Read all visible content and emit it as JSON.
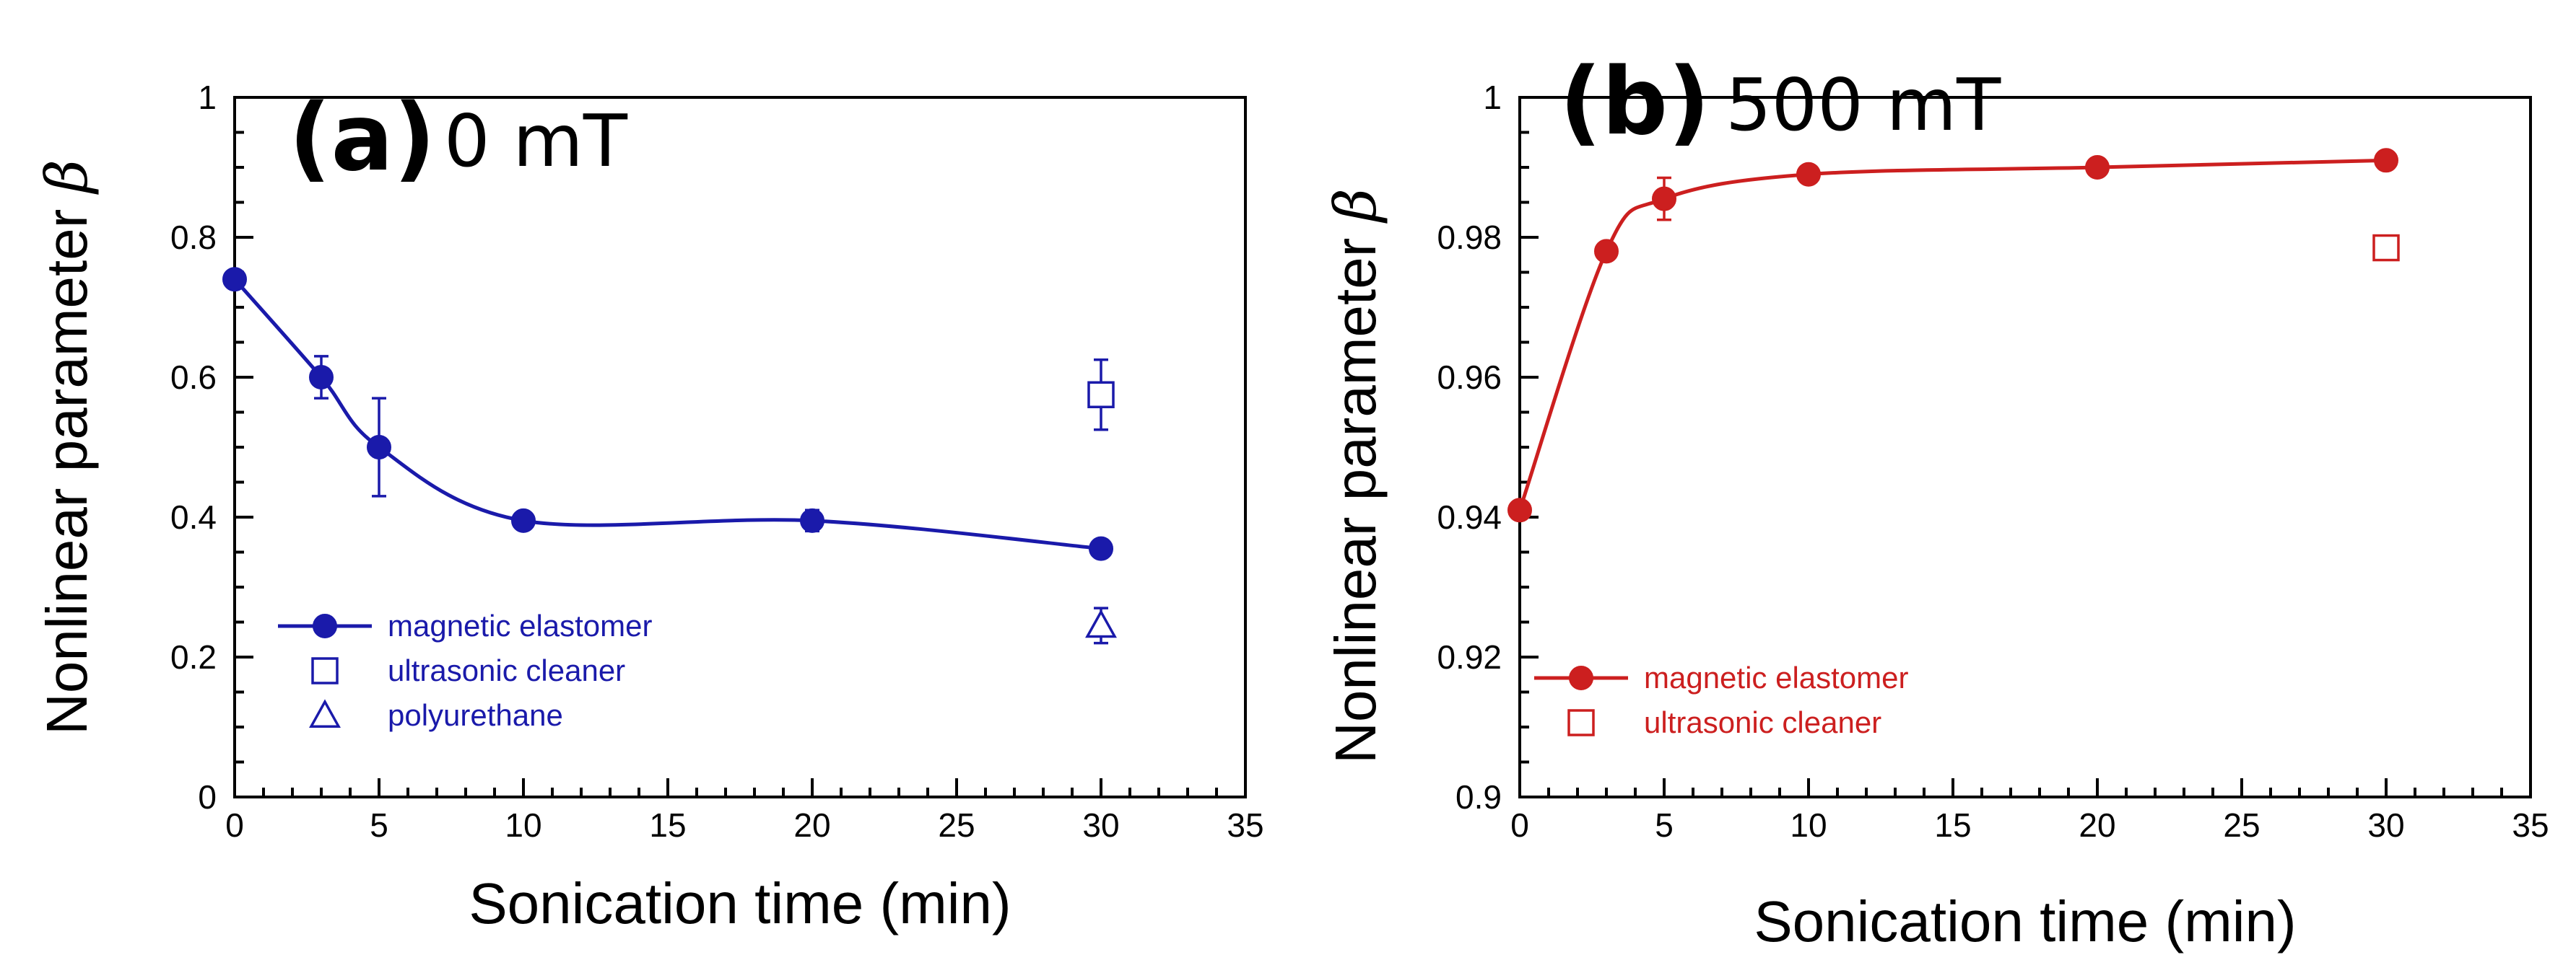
{
  "chart_data": [
    {
      "type": "line",
      "panel_letter": "(a)",
      "panel_field": "0 mT",
      "color": "#1a1aaa",
      "xlabel": "Sonication time (min)",
      "ylabel": "Nonlinear parameter ",
      "ylabel_symbol": "β",
      "xlim": [
        0,
        35
      ],
      "ylim": [
        0,
        1
      ],
      "xticks": [
        0,
        5,
        10,
        15,
        20,
        25,
        30,
        35
      ],
      "xtick_labels": [
        "0",
        "5",
        "10",
        "15",
        "20",
        "25",
        "30",
        "35"
      ],
      "yticks": [
        0,
        0.2,
        0.4,
        0.6,
        0.8,
        1
      ],
      "ytick_labels": [
        "0",
        "0.2",
        "0.4",
        "0.6",
        "0.8",
        "1"
      ],
      "minor_xticks": [
        1,
        2,
        3,
        4,
        6,
        7,
        8,
        9,
        11,
        12,
        13,
        14,
        16,
        17,
        18,
        19,
        21,
        22,
        23,
        24,
        26,
        27,
        28,
        29,
        31,
        32,
        33,
        34
      ],
      "minor_yticks": [
        0.05,
        0.1,
        0.15,
        0.25,
        0.3,
        0.35,
        0.45,
        0.5,
        0.55,
        0.65,
        0.7,
        0.75,
        0.85,
        0.9,
        0.95
      ],
      "series": [
        {
          "name": "magnetic elastomer",
          "marker": "filled-circle",
          "line": true,
          "x": [
            0,
            3,
            5,
            10,
            20,
            30
          ],
          "y": [
            0.74,
            0.6,
            0.5,
            0.395,
            0.395,
            0.355
          ],
          "err": [
            0.01,
            0.03,
            0.07,
            0.008,
            0.015,
            0.01
          ]
        },
        {
          "name": "ultrasonic cleaner",
          "marker": "open-square",
          "line": false,
          "x": [
            30
          ],
          "y": [
            0.575
          ],
          "err": [
            0.05
          ]
        },
        {
          "name": "polyurethane",
          "marker": "open-triangle",
          "line": false,
          "x": [
            30
          ],
          "y": [
            0.245
          ],
          "err": [
            0.025
          ]
        }
      ],
      "legend_position": "bottom-left"
    },
    {
      "type": "line",
      "panel_letter": "(b)",
      "panel_field": "500 mT",
      "color": "#cc1f1f",
      "xlabel": "Sonication time (min)",
      "ylabel": "Nonlinear parameter ",
      "ylabel_symbol": "β",
      "xlim": [
        0,
        35
      ],
      "ylim": [
        0.9,
        1
      ],
      "xticks": [
        0,
        5,
        10,
        15,
        20,
        25,
        30,
        35
      ],
      "xtick_labels": [
        "0",
        "5",
        "10",
        "15",
        "20",
        "25",
        "30",
        "35"
      ],
      "yticks": [
        0.9,
        0.92,
        0.94,
        0.96,
        0.98,
        1
      ],
      "ytick_labels": [
        "0.9",
        "0.92",
        "0.94",
        "0.96",
        "0.98",
        "1"
      ],
      "minor_xticks": [
        1,
        2,
        3,
        4,
        6,
        7,
        8,
        9,
        11,
        12,
        13,
        14,
        16,
        17,
        18,
        19,
        21,
        22,
        23,
        24,
        26,
        27,
        28,
        29,
        31,
        32,
        33,
        34
      ],
      "minor_yticks": [
        0.905,
        0.91,
        0.915,
        0.925,
        0.93,
        0.935,
        0.945,
        0.95,
        0.955,
        0.965,
        0.97,
        0.975,
        0.985,
        0.99,
        0.995
      ],
      "series": [
        {
          "name": "magnetic elastomer",
          "marker": "filled-circle",
          "line": true,
          "x": [
            0,
            3,
            5,
            10,
            20,
            30
          ],
          "y": [
            0.941,
            0.978,
            0.9855,
            0.989,
            0.99,
            0.991
          ],
          "err": [
            0.0005,
            0.001,
            0.003,
            0.001,
            0.001,
            0.0005
          ]
        },
        {
          "name": "ultrasonic cleaner",
          "marker": "open-square",
          "line": false,
          "x": [
            30
          ],
          "y": [
            0.9785
          ],
          "err": [
            0.0015
          ]
        }
      ],
      "legend_position": "bottom-left"
    }
  ]
}
